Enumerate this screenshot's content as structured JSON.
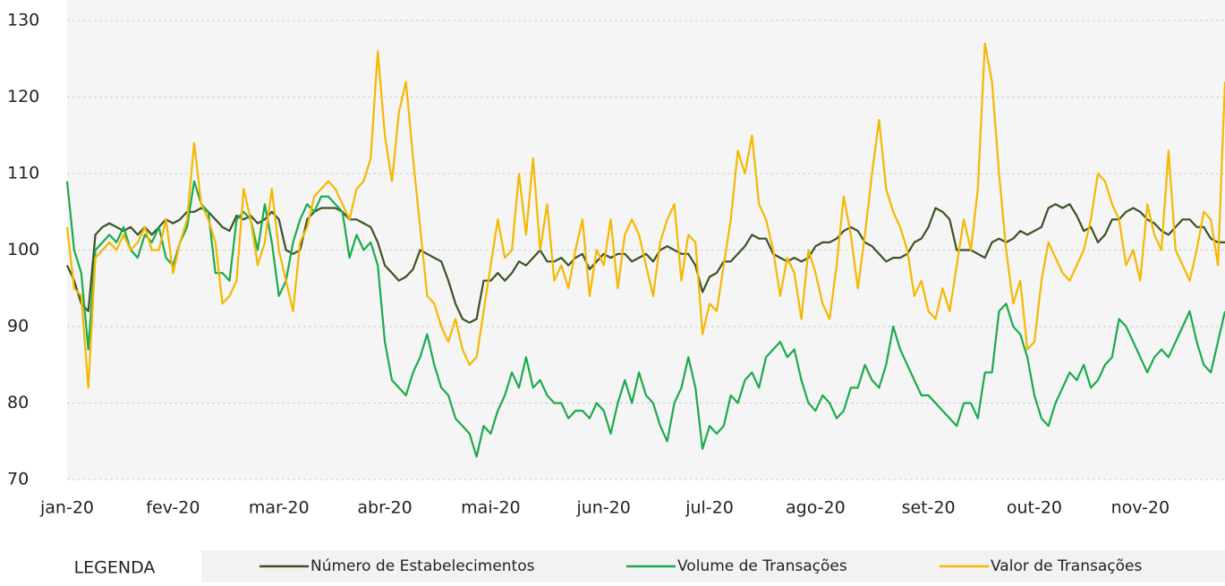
{
  "chart_data": {
    "type": "line",
    "legend_title": "LEGENDA",
    "categories": [
      "jan-20",
      null,
      null,
      null,
      null,
      null,
      null,
      null,
      null,
      null,
      null,
      null,
      null,
      null,
      null,
      "fev-20",
      null,
      null,
      null,
      null,
      null,
      null,
      null,
      null,
      null,
      null,
      null,
      null,
      null,
      null,
      "mar-20",
      null,
      null,
      null,
      null,
      null,
      null,
      null,
      null,
      null,
      null,
      null,
      null,
      null,
      null,
      "abr-20",
      null,
      null,
      null,
      null,
      null,
      null,
      null,
      null,
      null,
      null,
      null,
      null,
      null,
      null,
      "mai-20",
      null,
      null,
      null,
      null,
      null,
      null,
      null,
      null,
      null,
      null,
      null,
      null,
      null,
      null,
      null,
      "jun-20",
      null,
      null,
      null,
      null,
      null,
      null,
      null,
      null,
      null,
      null,
      null,
      null,
      null,
      null,
      "jul-20",
      null,
      null,
      null,
      null,
      null,
      null,
      null,
      null,
      null,
      null,
      null,
      null,
      null,
      null,
      "ago-20",
      null,
      null,
      null,
      null,
      null,
      null,
      null,
      null,
      null,
      null,
      null,
      null,
      null,
      null,
      null,
      "set-20",
      null,
      null,
      null,
      null,
      null,
      null,
      null,
      null,
      null,
      null,
      null,
      null,
      null,
      null,
      "out-20",
      null,
      null,
      null,
      null,
      null,
      null,
      null,
      null,
      null,
      null,
      null,
      null,
      null,
      null,
      "nov-20",
      null,
      null,
      null,
      null,
      null,
      null,
      null,
      null,
      null,
      null,
      null,
      null
    ],
    "series": [
      {
        "name": "Número de Estabelecimentos",
        "color": "#3b5323",
        "values": [
          98,
          96,
          93,
          92,
          102,
          103,
          103.5,
          103,
          102.5,
          103,
          102,
          103,
          102,
          103,
          104,
          103.5,
          104,
          105,
          105,
          105.5,
          105,
          104,
          103,
          102.5,
          104.5,
          104,
          104.5,
          103.5,
          104,
          105,
          104,
          100,
          99.5,
          100,
          104,
          105,
          105.5,
          105.5,
          105.5,
          105,
          104,
          104,
          103.5,
          103,
          101,
          98,
          97,
          96,
          96.5,
          97.5,
          100,
          99.5,
          99,
          98.5,
          96,
          93,
          91,
          90.5,
          91,
          96,
          96,
          97,
          96,
          97,
          98.5,
          98,
          99,
          100,
          98.5,
          98.5,
          99,
          98,
          99,
          99.5,
          97.5,
          98.5,
          99.5,
          99,
          99.5,
          99.5,
          98.5,
          99,
          99.5,
          98.5,
          100,
          100.5,
          100,
          99.5,
          99.5,
          98,
          94.5,
          96.5,
          97,
          98.5,
          98.5,
          99.5,
          100.5,
          102,
          101.5,
          101.5,
          99.5,
          99,
          98.5,
          99,
          98.5,
          99,
          100.5,
          101,
          101,
          101.5,
          102.5,
          103,
          102.5,
          101,
          100.5,
          99.5,
          98.5,
          99,
          99,
          99.5,
          101,
          101.5,
          103,
          105.5,
          105,
          104,
          100,
          100,
          100,
          99.5,
          99,
          101,
          101.5,
          101,
          101.5,
          102.5,
          102,
          102.5,
          103,
          105.5,
          106,
          105.5,
          106,
          104.5,
          102.5,
          103,
          101,
          102,
          104,
          104,
          105,
          105.5,
          105,
          104,
          103.5,
          102.5,
          102,
          103,
          104,
          104,
          103,
          103,
          101.5,
          101,
          101
        ]
      },
      {
        "name": "Volume de Transações",
        "color": "#1aab4b",
        "values": [
          109,
          100,
          97,
          87,
          100,
          101,
          102,
          101,
          103,
          100,
          99,
          102,
          101,
          103,
          99,
          98,
          101,
          103,
          109,
          106,
          105,
          97,
          97,
          96,
          104,
          105,
          104,
          100,
          106,
          101,
          94,
          96,
          101,
          104,
          106,
          105,
          107,
          107,
          106,
          105,
          99,
          102,
          100,
          101,
          98,
          88,
          83,
          82,
          81,
          84,
          86,
          89,
          85,
          82,
          81,
          78,
          77,
          76,
          73,
          77,
          76,
          79,
          81,
          84,
          82,
          86,
          82,
          83,
          81,
          80,
          80,
          78,
          79,
          79,
          78,
          80,
          79,
          76,
          80,
          83,
          80,
          84,
          81,
          80,
          77,
          75,
          80,
          82,
          86,
          82,
          74,
          77,
          76,
          77,
          81,
          80,
          83,
          84,
          82,
          86,
          87,
          88,
          86,
          87,
          83,
          80,
          79,
          81,
          80,
          78,
          79,
          82,
          82,
          85,
          83,
          82,
          85,
          90,
          87,
          85,
          83,
          81,
          81,
          80,
          79,
          78,
          77,
          80,
          80,
          78,
          84,
          84,
          92,
          93,
          90,
          89,
          86,
          81,
          78,
          77,
          80,
          82,
          84,
          83,
          85,
          82,
          83,
          85,
          86,
          91,
          90,
          88,
          86,
          84,
          86,
          87,
          86,
          88,
          90,
          92,
          88,
          85,
          84,
          88,
          92
        ]
      },
      {
        "name": "Valor de Transações",
        "color": "#f5b800",
        "values": [
          103,
          95,
          94,
          82,
          99,
          100,
          101,
          100,
          102,
          100,
          101,
          103,
          100,
          100,
          104,
          97,
          101,
          104,
          114,
          106,
          104,
          101,
          93,
          94,
          96,
          108,
          104,
          98,
          101,
          108,
          100,
          96,
          92,
          101,
          103,
          107,
          108,
          109,
          108,
          106,
          104,
          108,
          109,
          112,
          126,
          115,
          109,
          118,
          122,
          112,
          103,
          94,
          93,
          90,
          88,
          91,
          87,
          85,
          86,
          92,
          98,
          104,
          99,
          100,
          110,
          102,
          112,
          100,
          106,
          96,
          98,
          95,
          100,
          104,
          94,
          100,
          98,
          104,
          95,
          102,
          104,
          102,
          98,
          94,
          101,
          104,
          106,
          96,
          102,
          101,
          89,
          93,
          92,
          98,
          104,
          113,
          110,
          115,
          106,
          104,
          100,
          94,
          99,
          97,
          91,
          100,
          97,
          93,
          91,
          98,
          107,
          102,
          95,
          102,
          110,
          117,
          108,
          105,
          103,
          100,
          94,
          96,
          92,
          91,
          95,
          92,
          98,
          104,
          100,
          108,
          127,
          122,
          110,
          100,
          93,
          96,
          87,
          88,
          96,
          101,
          99,
          97,
          96,
          98,
          100,
          104,
          110,
          109,
          106,
          104,
          98,
          100,
          96,
          106,
          102,
          100,
          113,
          100,
          98,
          96,
          100,
          105,
          104,
          98,
          122
        ]
      }
    ],
    "ylim": [
      70,
      130
    ],
    "yticks": [
      70,
      80,
      90,
      100,
      110,
      120,
      130
    ],
    "grid": true
  }
}
